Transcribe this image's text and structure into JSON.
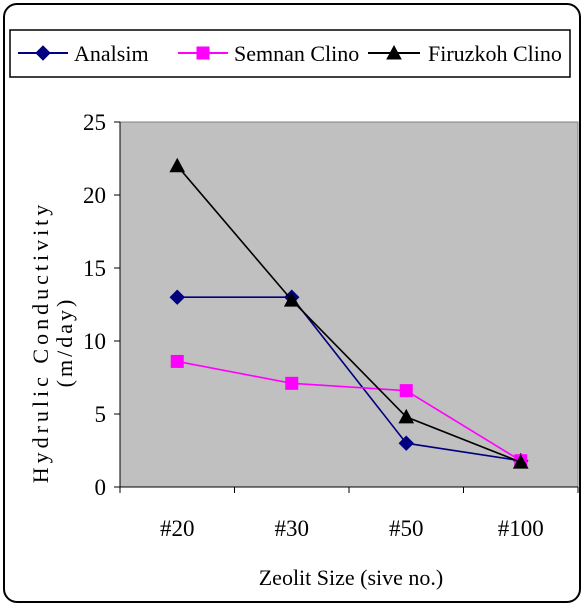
{
  "chart_data": {
    "type": "line",
    "categories": [
      "#20",
      "#30",
      "#50",
      "#100"
    ],
    "series": [
      {
        "name": "Analsim",
        "values": [
          13,
          13,
          3,
          1.8
        ],
        "color": "#000080",
        "marker": "diamond"
      },
      {
        "name": "Semnan Clino",
        "values": [
          8.6,
          7.1,
          6.6,
          1.8
        ],
        "color": "#ff00ff",
        "marker": "square"
      },
      {
        "name": "Firuzkoh Clino",
        "values": [
          22,
          12.8,
          4.8,
          1.7
        ],
        "color": "#000000",
        "marker": "triangle"
      }
    ],
    "xlabel": "Zeolit Size (sive no.)",
    "ylabel_line1": "Hydrulic Conductivity",
    "ylabel_line2": "(m/day)",
    "ylim": [
      0,
      25
    ],
    "yticks": [
      0,
      5,
      10,
      15,
      20,
      25
    ],
    "plot_background": "#c0c0c0",
    "grid": false,
    "legend_position": "top"
  }
}
